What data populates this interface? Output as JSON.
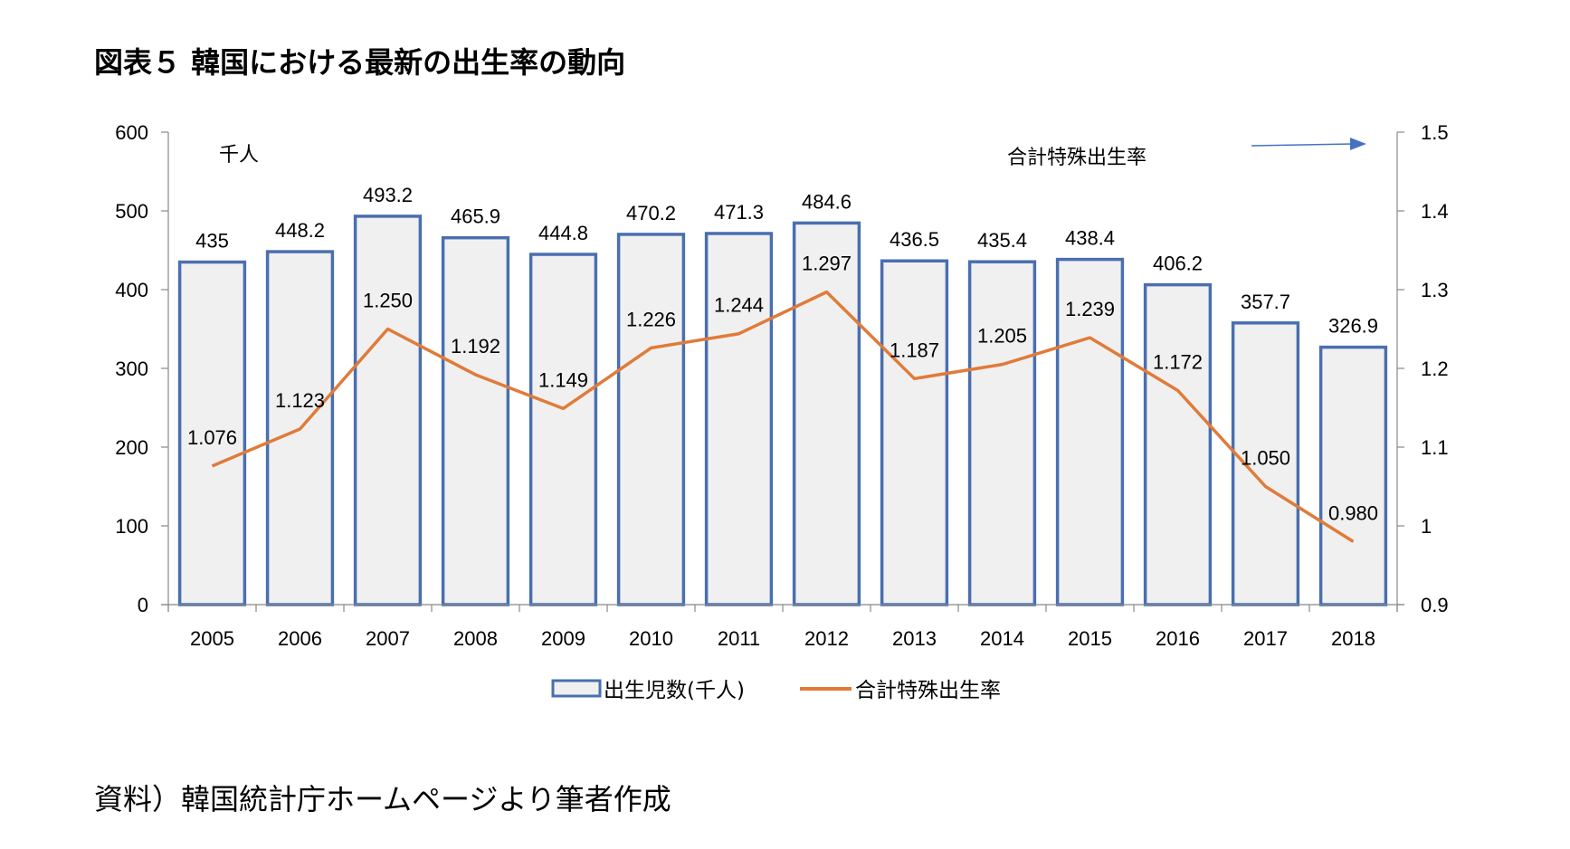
{
  "page": {
    "title": "図表５ 韓国における最新の出生率の動向",
    "source": "資料）韓国統計庁ホームページより筆者作成"
  },
  "colors": {
    "bar_stroke": "#4a6fb0",
    "bar_fill": "#f0f0f0",
    "line": "#e07b39",
    "axis": "#888888",
    "arrow": "#4472c4"
  },
  "chart_data": {
    "type": "bar",
    "title": "図表５ 韓国における最新の出生率の動向",
    "categories": [
      "2005",
      "2006",
      "2007",
      "2008",
      "2009",
      "2010",
      "2011",
      "2012",
      "2013",
      "2014",
      "2015",
      "2016",
      "2017",
      "2018"
    ],
    "series": [
      {
        "name": "出生児数(千人)",
        "type": "bar",
        "axis": "left",
        "values": [
          435,
          448.2,
          493.2,
          465.9,
          444.8,
          470.2,
          471.3,
          484.6,
          436.5,
          435.4,
          438.4,
          406.2,
          357.7,
          326.9
        ],
        "labels": [
          "435",
          "448.2",
          "493.2",
          "465.9",
          "444.8",
          "470.2",
          "471.3",
          "484.6",
          "436.5",
          "435.4",
          "438.4",
          "406.2",
          "357.7",
          "326.9"
        ]
      },
      {
        "name": "合計特殊出生率",
        "type": "line",
        "axis": "right",
        "values": [
          1.076,
          1.123,
          1.25,
          1.192,
          1.149,
          1.226,
          1.244,
          1.297,
          1.187,
          1.205,
          1.239,
          1.172,
          1.05,
          0.98
        ],
        "labels": [
          "1.076",
          "1.123",
          "1.250",
          "1.192",
          "1.149",
          "1.226",
          "1.244",
          "1.297",
          "1.187",
          "1.205",
          "1.239",
          "1.172",
          "1.050",
          "0.980"
        ]
      }
    ],
    "left_axis": {
      "label": "千人",
      "range": [
        0,
        600
      ],
      "ticks": [
        "0",
        "100",
        "200",
        "300",
        "400",
        "500",
        "600"
      ],
      "tick_values": [
        0,
        100,
        200,
        300,
        400,
        500,
        600
      ]
    },
    "right_axis": {
      "label": "合計特殊出生率",
      "range": [
        0.9,
        1.5
      ],
      "ticks": [
        "0.9",
        "1",
        "1.1",
        "1.2",
        "1.3",
        "1.4",
        "1.5"
      ],
      "tick_values": [
        0.9,
        1.0,
        1.1,
        1.2,
        1.3,
        1.4,
        1.5
      ]
    },
    "annotation_arrow": "right-axis-pointer",
    "legend": {
      "position": "bottom-center",
      "entries": [
        "出生児数(千人)",
        "合計特殊出生率"
      ]
    },
    "grid": false
  }
}
